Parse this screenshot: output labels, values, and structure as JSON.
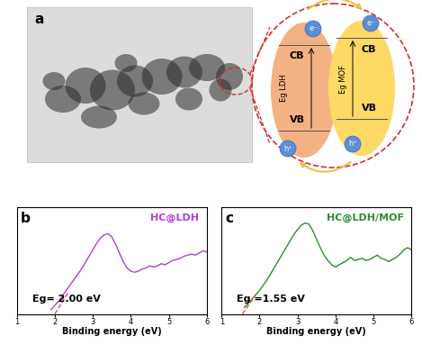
{
  "diagram": {
    "panel_label": "a",
    "band_diagram": {
      "left": {
        "label": "Eg LDH",
        "cb": "CB",
        "vb": "VB"
      },
      "right": {
        "label": "Eg MOF",
        "cb": "CB",
        "vb": "VB"
      },
      "electron": "e⁻",
      "hole": "h⁺"
    }
  },
  "chart_data": [
    {
      "type": "line",
      "label": "b",
      "xlabel": "Binding energy (eV)",
      "xlim": [
        1,
        6
      ],
      "xticks": [
        1,
        2,
        3,
        4,
        5,
        6
      ],
      "ylim": [
        0,
        1
      ],
      "tick_labels": "x",
      "annotations": [
        "Eg= 2.00 eV"
      ],
      "series": [
        {
          "name": "HC@LDH",
          "color": "#b040d0",
          "x": [
            1.9,
            2.0,
            2.1,
            2.2,
            2.3,
            2.4,
            2.5,
            2.6,
            2.7,
            2.8,
            2.9,
            3.0,
            3.1,
            3.2,
            3.3,
            3.4,
            3.5,
            3.6,
            3.7,
            3.8,
            3.9,
            4.0,
            4.1,
            4.2,
            4.3,
            4.4,
            4.5,
            4.6,
            4.7,
            4.8,
            4.9,
            5.0,
            5.1,
            5.2,
            5.3,
            5.4,
            5.5,
            5.6,
            5.7,
            5.8,
            5.9,
            6.0
          ],
          "values": [
            0.04,
            0.08,
            0.12,
            0.17,
            0.22,
            0.27,
            0.32,
            0.37,
            0.42,
            0.48,
            0.54,
            0.6,
            0.66,
            0.71,
            0.74,
            0.75,
            0.72,
            0.65,
            0.57,
            0.49,
            0.43,
            0.4,
            0.39,
            0.4,
            0.42,
            0.43,
            0.45,
            0.44,
            0.45,
            0.47,
            0.46,
            0.48,
            0.5,
            0.51,
            0.52,
            0.54,
            0.55,
            0.56,
            0.55,
            0.57,
            0.59,
            0.58
          ]
        },
        {
          "color": "#e05050",
          "line_style": "dashed",
          "x": [
            2.0,
            2.35
          ],
          "values": [
            0.0,
            0.2
          ]
        }
      ]
    },
    {
      "type": "line",
      "label": "c",
      "xlabel": "Binding energy (eV)",
      "xlim": [
        1,
        6
      ],
      "xticks": [
        1,
        2,
        3,
        4,
        5,
        6
      ],
      "ylim": [
        0,
        1
      ],
      "tick_labels": "x",
      "annotations": [
        "Eg =1.55 eV"
      ],
      "series": [
        {
          "name": "HC@LDH/MOF",
          "color": "#2e8b2e",
          "x": [
            1.6,
            1.7,
            1.8,
            1.9,
            2.0,
            2.1,
            2.2,
            2.3,
            2.4,
            2.5,
            2.6,
            2.7,
            2.8,
            2.9,
            3.0,
            3.1,
            3.2,
            3.3,
            3.4,
            3.5,
            3.6,
            3.7,
            3.8,
            3.9,
            4.0,
            4.1,
            4.2,
            4.3,
            4.4,
            4.5,
            4.6,
            4.7,
            4.8,
            4.9,
            5.0,
            5.1,
            5.2,
            5.3,
            5.4,
            5.5,
            5.6,
            5.7,
            5.8,
            5.9,
            6.0
          ],
          "values": [
            0.06,
            0.1,
            0.14,
            0.18,
            0.22,
            0.27,
            0.32,
            0.38,
            0.44,
            0.5,
            0.56,
            0.62,
            0.68,
            0.74,
            0.79,
            0.83,
            0.85,
            0.84,
            0.78,
            0.7,
            0.62,
            0.55,
            0.5,
            0.46,
            0.44,
            0.46,
            0.48,
            0.5,
            0.53,
            0.5,
            0.51,
            0.52,
            0.5,
            0.51,
            0.53,
            0.55,
            0.52,
            0.51,
            0.49,
            0.51,
            0.53,
            0.56,
            0.6,
            0.62,
            0.6
          ]
        },
        {
          "color": "#e05050",
          "line_style": "dashed",
          "x": [
            1.55,
            1.9
          ],
          "values": [
            0.0,
            0.18
          ]
        }
      ]
    }
  ]
}
